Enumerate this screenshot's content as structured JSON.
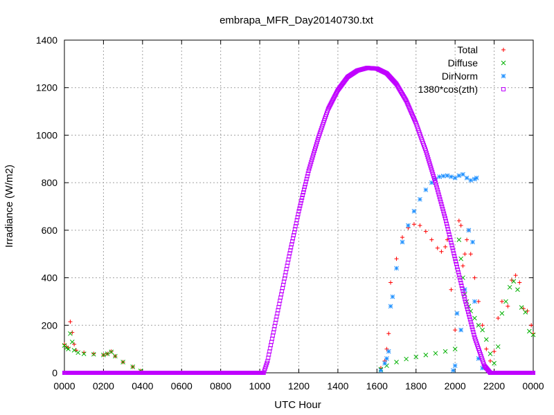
{
  "chart_data": {
    "type": "scatter",
    "title": "embrapa_MFR_Day20140730.txt",
    "xlabel": "UTC Hour",
    "ylabel": "Irradiance (W/m2)",
    "xlim": [
      0,
      24
    ],
    "ylim": [
      0,
      1400
    ],
    "x_tick_labels": [
      "0000",
      "0200",
      "0400",
      "0600",
      "0800",
      "1000",
      "1200",
      "1400",
      "1600",
      "1800",
      "2000",
      "2200",
      "0000"
    ],
    "y_ticks": [
      0,
      200,
      400,
      600,
      800,
      1000,
      1200,
      1400
    ],
    "grid": true,
    "legend_position": "top-right",
    "series": [
      {
        "name": "Total",
        "color": "#ff0000",
        "marker": "plus",
        "points": [
          [
            0.0,
            120
          ],
          [
            0.1,
            110
          ],
          [
            0.2,
            105
          ],
          [
            0.3,
            215
          ],
          [
            0.4,
            170
          ],
          [
            0.5,
            120
          ],
          [
            0.6,
            95
          ],
          [
            1.0,
            85
          ],
          [
            1.5,
            80
          ],
          [
            2.0,
            75
          ],
          [
            2.2,
            80
          ],
          [
            2.4,
            90
          ],
          [
            2.6,
            70
          ],
          [
            3.0,
            45
          ],
          [
            3.5,
            25
          ],
          [
            3.9,
            8
          ],
          [
            16.2,
            20
          ],
          [
            16.4,
            50
          ],
          [
            16.5,
            100
          ],
          [
            16.6,
            165
          ],
          [
            16.7,
            380
          ],
          [
            17.0,
            480
          ],
          [
            17.3,
            570
          ],
          [
            17.6,
            610
          ],
          [
            17.9,
            625
          ],
          [
            18.2,
            620
          ],
          [
            18.5,
            595
          ],
          [
            18.8,
            560
          ],
          [
            19.1,
            525
          ],
          [
            19.3,
            510
          ],
          [
            19.5,
            530
          ],
          [
            19.6,
            560
          ],
          [
            19.8,
            350
          ],
          [
            20.0,
            180
          ],
          [
            20.2,
            640
          ],
          [
            20.3,
            620
          ],
          [
            20.4,
            450
          ],
          [
            20.5,
            500
          ],
          [
            20.6,
            560
          ],
          [
            20.7,
            600
          ],
          [
            20.8,
            500
          ],
          [
            21.0,
            400
          ],
          [
            21.2,
            300
          ],
          [
            21.4,
            200
          ],
          [
            21.6,
            100
          ],
          [
            21.8,
            50
          ],
          [
            22.0,
            90
          ],
          [
            22.2,
            230
          ],
          [
            22.4,
            300
          ],
          [
            22.7,
            280
          ],
          [
            22.9,
            390
          ],
          [
            23.1,
            410
          ],
          [
            23.3,
            380
          ],
          [
            23.5,
            270
          ],
          [
            23.7,
            260
          ],
          [
            23.9,
            200
          ],
          [
            24.0,
            165
          ]
        ]
      },
      {
        "name": "Diffuse",
        "color": "#00b000",
        "marker": "cross",
        "points": [
          [
            0.0,
            115
          ],
          [
            0.1,
            105
          ],
          [
            0.2,
            100
          ],
          [
            0.3,
            165
          ],
          [
            0.4,
            130
          ],
          [
            0.5,
            95
          ],
          [
            0.7,
            85
          ],
          [
            1.0,
            80
          ],
          [
            1.5,
            78
          ],
          [
            2.0,
            75
          ],
          [
            2.2,
            80
          ],
          [
            2.4,
            88
          ],
          [
            2.6,
            70
          ],
          [
            3.0,
            45
          ],
          [
            3.5,
            25
          ],
          [
            3.9,
            8
          ],
          [
            16.2,
            15
          ],
          [
            16.5,
            30
          ],
          [
            17.0,
            45
          ],
          [
            17.5,
            58
          ],
          [
            18.0,
            67
          ],
          [
            18.5,
            75
          ],
          [
            19.0,
            82
          ],
          [
            19.5,
            90
          ],
          [
            20.0,
            100
          ],
          [
            20.2,
            560
          ],
          [
            20.3,
            480
          ],
          [
            20.4,
            400
          ],
          [
            20.5,
            330
          ],
          [
            20.6,
            300
          ],
          [
            20.7,
            280
          ],
          [
            20.8,
            260
          ],
          [
            21.0,
            230
          ],
          [
            21.2,
            200
          ],
          [
            21.4,
            180
          ],
          [
            21.6,
            140
          ],
          [
            21.8,
            80
          ],
          [
            22.0,
            40
          ],
          [
            22.2,
            110
          ],
          [
            22.4,
            250
          ],
          [
            22.6,
            300
          ],
          [
            22.8,
            360
          ],
          [
            23.0,
            385
          ],
          [
            23.2,
            350
          ],
          [
            23.4,
            275
          ],
          [
            23.6,
            255
          ],
          [
            23.8,
            175
          ],
          [
            24.0,
            160
          ]
        ]
      },
      {
        "name": "DirNorm",
        "color": "#1e90ff",
        "marker": "star",
        "points": [
          [
            16.2,
            10
          ],
          [
            16.4,
            40
          ],
          [
            16.5,
            60
          ],
          [
            16.6,
            90
          ],
          [
            16.7,
            280
          ],
          [
            16.8,
            320
          ],
          [
            17.0,
            440
          ],
          [
            17.3,
            550
          ],
          [
            17.6,
            620
          ],
          [
            17.9,
            680
          ],
          [
            18.2,
            730
          ],
          [
            18.5,
            770
          ],
          [
            18.8,
            800
          ],
          [
            19.0,
            815
          ],
          [
            19.2,
            825
          ],
          [
            19.4,
            828
          ],
          [
            19.6,
            830
          ],
          [
            19.8,
            825
          ],
          [
            20.0,
            820
          ],
          [
            20.2,
            830
          ],
          [
            20.4,
            835
          ],
          [
            20.6,
            820
          ],
          [
            20.8,
            810
          ],
          [
            21.0,
            815
          ],
          [
            21.1,
            820
          ],
          [
            20.1,
            250
          ],
          [
            20.3,
            180
          ],
          [
            20.5,
            350
          ],
          [
            20.7,
            600
          ],
          [
            20.9,
            550
          ],
          [
            21.0,
            300
          ],
          [
            20.0,
            30
          ],
          [
            19.9,
            10
          ],
          [
            21.2,
            60
          ],
          [
            21.4,
            20
          ]
        ]
      },
      {
        "name": "1380*cos(zth)",
        "color": "#c000ff",
        "marker": "square",
        "points": [
          [
            0,
            0
          ],
          [
            10.2,
            0
          ],
          [
            10.4,
            50
          ],
          [
            10.6,
            130
          ],
          [
            11.0,
            290
          ],
          [
            11.5,
            490
          ],
          [
            12.0,
            680
          ],
          [
            12.5,
            850
          ],
          [
            13.0,
            990
          ],
          [
            13.5,
            1110
          ],
          [
            14.0,
            1190
          ],
          [
            14.5,
            1245
          ],
          [
            15.0,
            1272
          ],
          [
            15.5,
            1283
          ],
          [
            16.0,
            1280
          ],
          [
            16.5,
            1260
          ],
          [
            17.0,
            1215
          ],
          [
            17.5,
            1145
          ],
          [
            18.0,
            1050
          ],
          [
            18.5,
            935
          ],
          [
            19.0,
            800
          ],
          [
            19.5,
            650
          ],
          [
            20.0,
            480
          ],
          [
            20.5,
            310
          ],
          [
            21.0,
            150
          ],
          [
            21.5,
            30
          ],
          [
            21.8,
            0
          ],
          [
            24,
            0
          ]
        ]
      }
    ]
  }
}
